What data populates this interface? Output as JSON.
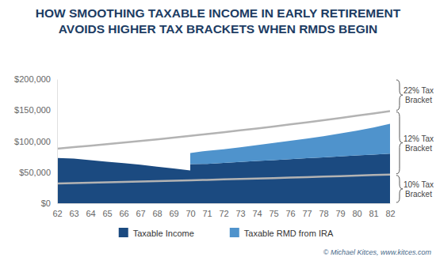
{
  "chart_data": {
    "type": "area",
    "title": "HOW SMOOTHING TAXABLE INCOME IN EARLY RETIREMENT AVOIDS HIGHER TAX BRACKETS WHEN RMDS BEGIN",
    "x": [
      62,
      63,
      64,
      65,
      66,
      67,
      68,
      69,
      70,
      70,
      71,
      72,
      73,
      74,
      75,
      76,
      77,
      78,
      79,
      80,
      81,
      82
    ],
    "series": [
      {
        "name": "Taxable Income",
        "color": "#1b4a80",
        "type": "area",
        "values": [
          73000,
          72000,
          69500,
          67000,
          64500,
          62000,
          59000,
          56000,
          53000,
          63000,
          63500,
          65000,
          66500,
          68000,
          69500,
          71000,
          72500,
          74000,
          75500,
          77000,
          78500,
          80000
        ]
      },
      {
        "name": "Taxable RMD from IRA",
        "color": "#4f93cc",
        "type": "area",
        "values": [
          null,
          null,
          null,
          null,
          null,
          null,
          null,
          null,
          null,
          18000,
          21000,
          22000,
          23500,
          25500,
          27500,
          29500,
          31500,
          34000,
          37000,
          40000,
          43500,
          48000
        ]
      },
      {
        "color": "#b3b3b3",
        "type": "line",
        "values": [
          32000,
          32600,
          33200,
          33800,
          34400,
          35100,
          35700,
          36400,
          37000,
          37000,
          37700,
          38400,
          39100,
          39900,
          40600,
          41400,
          42100,
          42900,
          43700,
          44500,
          45400,
          46200
        ]
      },
      {
        "color": "#b3b3b3",
        "type": "line",
        "values": [
          88000,
          90300,
          92700,
          95200,
          97700,
          100300,
          103000,
          105700,
          108500,
          108500,
          111400,
          114300,
          117400,
          120500,
          123700,
          127000,
          130300,
          133800,
          137300,
          141000,
          144700,
          148500
        ]
      }
    ],
    "stacked": true,
    "xlim": [
      62,
      82
    ],
    "xticks": [
      62,
      63,
      64,
      65,
      66,
      67,
      68,
      69,
      70,
      71,
      72,
      73,
      74,
      75,
      76,
      77,
      78,
      79,
      80,
      81,
      82
    ],
    "ylim": [
      0,
      200000
    ],
    "yticks": [
      {
        "value": 0,
        "label": "$0"
      },
      {
        "value": 50000,
        "label": "$50,000"
      },
      {
        "value": 100000,
        "label": "$100,000"
      },
      {
        "value": 150000,
        "label": "$150,000"
      },
      {
        "value": 200000,
        "label": "$200,000"
      }
    ],
    "legend": "bottom",
    "annotations": [
      "22% Tax Bracket",
      "12% Tax Bracket",
      "10% Tax Bracket"
    ],
    "credit": "© Michael Kitces, www.kitces.com"
  }
}
